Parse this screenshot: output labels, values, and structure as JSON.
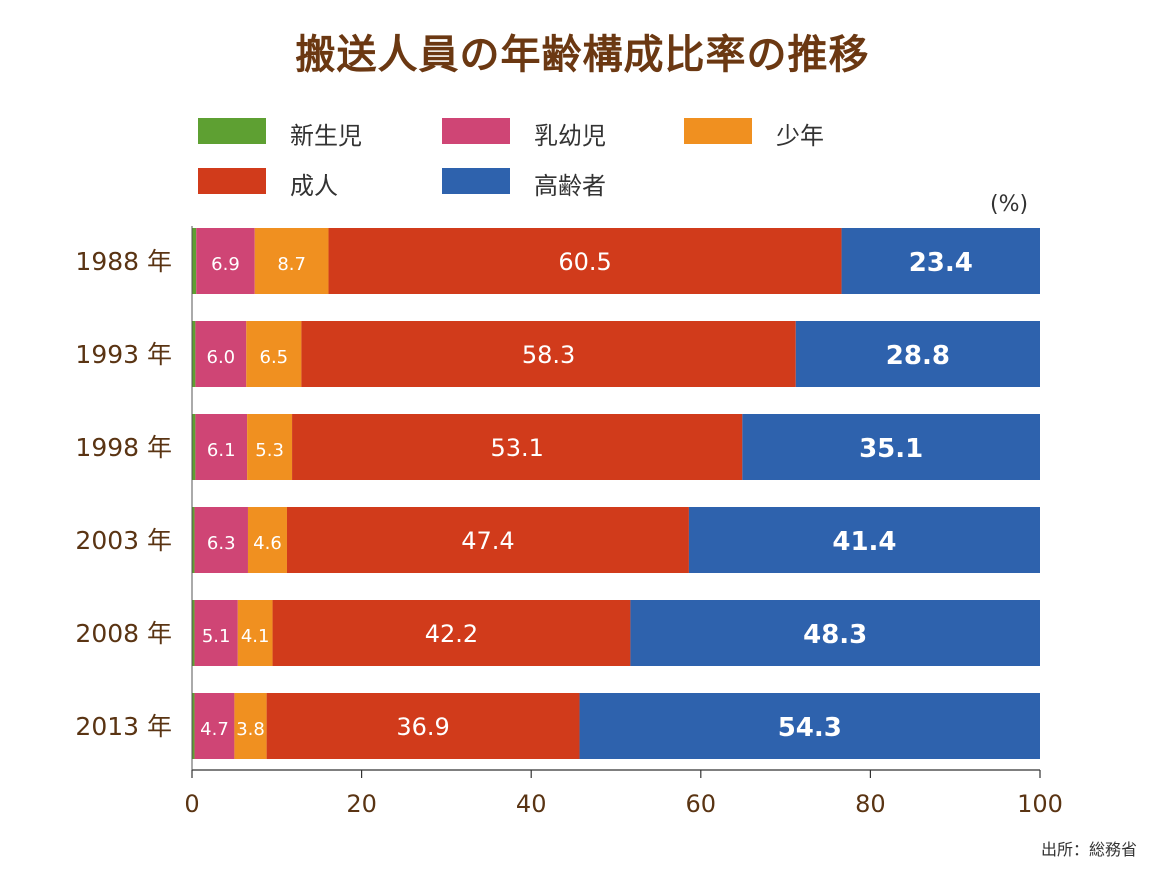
{
  "title": "搬送人員の年齢構成比率の推移",
  "unit": "(%)",
  "source": "出所：総務省",
  "colors": {
    "title": "#6b3812",
    "axis_text": "#5a3413"
  },
  "chart_data": {
    "type": "bar",
    "orientation": "horizontal",
    "stacked": true,
    "categories": [
      "1988 年",
      "1993 年",
      "1998 年",
      "2003 年",
      "2008 年",
      "2013 年"
    ],
    "series": [
      {
        "name": "新生児",
        "color": "#5ea032",
        "values": [
          0.5,
          0.4,
          0.4,
          0.3,
          0.3,
          0.3
        ]
      },
      {
        "name": "乳幼児",
        "color": "#cf4575",
        "values": [
          6.9,
          6.0,
          6.1,
          6.3,
          5.1,
          4.7
        ],
        "labels": [
          "6.9",
          "6.0",
          "6.1",
          "6.3",
          "5.1",
          "4.7"
        ]
      },
      {
        "name": "少年",
        "color": "#f09020",
        "values": [
          8.7,
          6.5,
          5.3,
          4.6,
          4.1,
          3.8
        ],
        "labels": [
          "8.7",
          "6.5",
          "5.3",
          "4.6",
          "4.1",
          "3.8"
        ]
      },
      {
        "name": "成人",
        "color": "#d13b1b",
        "values": [
          60.5,
          58.3,
          53.1,
          47.4,
          42.2,
          36.9
        ],
        "labels": [
          "60.5",
          "58.3",
          "53.1",
          "47.4",
          "42.2",
          "36.9"
        ]
      },
      {
        "name": "高齢者",
        "color": "#2e62ad",
        "values": [
          23.4,
          28.8,
          35.1,
          41.4,
          48.3,
          54.3
        ],
        "labels": [
          "23.4",
          "28.8",
          "35.1",
          "41.4",
          "48.3",
          "54.3"
        ],
        "bold_labels": true
      }
    ],
    "xlim": [
      0,
      100
    ],
    "xticks": [
      0,
      20,
      40,
      60,
      80,
      100
    ],
    "legend_position": "top-left"
  }
}
